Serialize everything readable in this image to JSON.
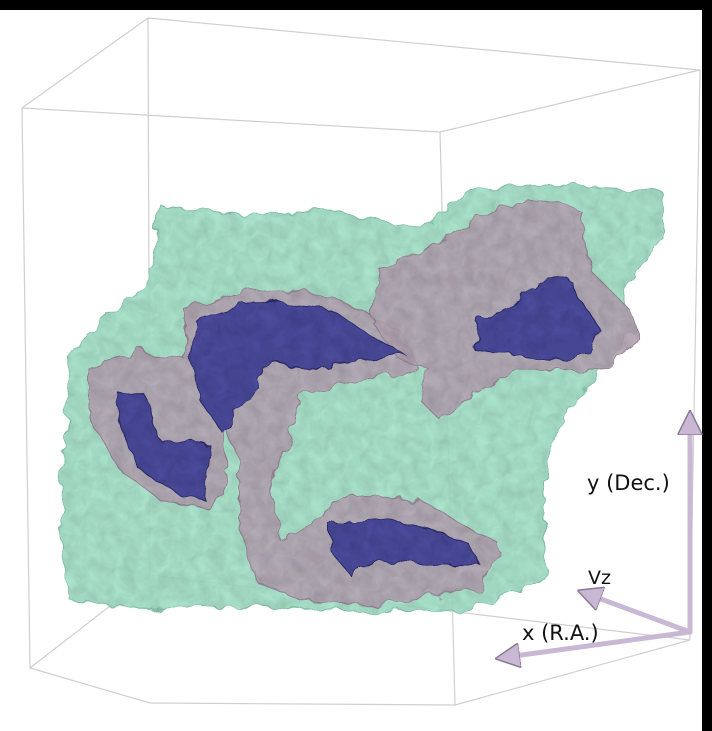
{
  "axes": {
    "y_label": "y (Dec.)",
    "z_label": "Vz",
    "x_label": "x (R.A.)"
  }
}
